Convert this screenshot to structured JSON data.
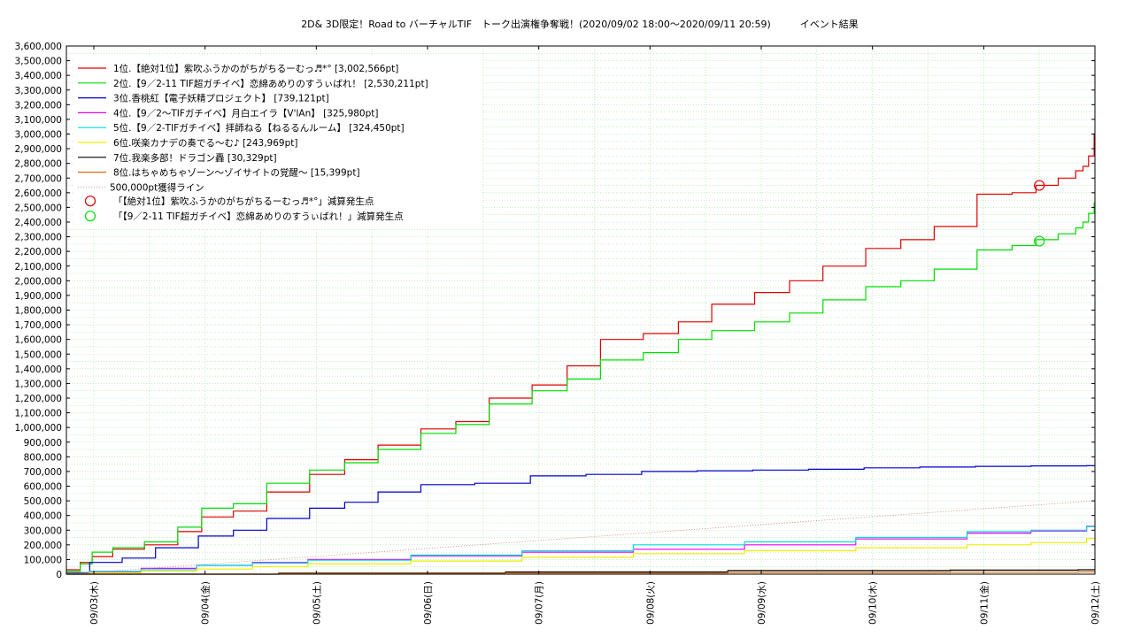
{
  "chart_data": {
    "type": "line",
    "title": "2D& 3D限定！Road to バーチャルTIF　トーク出演権争奪戦！(2020/09/02 18:00〜2020/09/11 20:59)　　　イベント結果",
    "xlabel": "",
    "ylabel": "",
    "ylim": [
      0,
      3600000
    ],
    "xlim": [
      0,
      9
    ],
    "x_tick_labels": [
      "09/03(木)",
      "09/04(金)",
      "09/05(土)",
      "09/06(日)",
      "09/07(月)",
      "09/08(火)",
      "09/09(水)",
      "09/10(木)",
      "09/11(金)",
      "09/12(土)"
    ],
    "y_tick_labels": [
      "0",
      "100,000",
      "200,000",
      "300,000",
      "400,000",
      "500,000",
      "600,000",
      "700,000",
      "800,000",
      "900,000",
      "1,000,000",
      "1,100,000",
      "1,200,000",
      "1,300,000",
      "1,400,000",
      "1,500,000",
      "1,600,000",
      "1,700,000",
      "1,800,000",
      "1,900,000",
      "2,000,000",
      "2,100,000",
      "2,200,000",
      "2,300,000",
      "2,400,000",
      "2,500,000",
      "2,600,000",
      "2,700,000",
      "2,800,000",
      "2,900,000",
      "3,000,000",
      "3,100,000",
      "3,200,000",
      "3,300,000",
      "3,400,000",
      "3,500,000",
      "3,600,000"
    ],
    "grid": true,
    "legend_position": "top-left",
    "series": [
      {
        "name": "1位.【絶対1位】紫吹ふうかのがちがちるーむっ♬*° [3,002,566pt]",
        "color": "#e00000",
        "x": [
          -0.25,
          -0.1,
          0,
          0.2,
          0.5,
          0.8,
          1.0,
          1.3,
          1.6,
          2.0,
          2.3,
          2.6,
          3.0,
          3.3,
          3.6,
          4.0,
          4.3,
          4.6,
          5.0,
          5.3,
          5.6,
          6.0,
          6.3,
          6.6,
          7.0,
          7.3,
          7.6,
          8.0,
          8.3,
          8.5,
          8.7,
          8.85,
          8.9,
          8.95,
          9.0
        ],
        "y": [
          30000,
          80000,
          120000,
          170000,
          200000,
          290000,
          390000,
          430000,
          560000,
          680000,
          780000,
          880000,
          990000,
          1040000,
          1200000,
          1290000,
          1420000,
          1600000,
          1640000,
          1720000,
          1840000,
          1920000,
          2000000,
          2100000,
          2220000,
          2280000,
          2370000,
          2590000,
          2600000,
          2650000,
          2700000,
          2750000,
          2780000,
          2850000,
          3000000
        ]
      },
      {
        "name": "2位.【9／2-11 TIF超ガチイベ】恋綿あめりのすうぃばれ！ [2,530,211pt]",
        "color": "#00dd00",
        "x": [
          -0.25,
          -0.1,
          0,
          0.2,
          0.5,
          0.8,
          1.0,
          1.3,
          1.6,
          2.0,
          2.3,
          2.6,
          3.0,
          3.3,
          3.6,
          4.0,
          4.3,
          4.6,
          5.0,
          5.3,
          5.6,
          6.0,
          6.3,
          6.6,
          7.0,
          7.3,
          7.6,
          8.0,
          8.3,
          8.5,
          8.7,
          8.85,
          8.9,
          8.95,
          9.0
        ],
        "y": [
          20000,
          70000,
          150000,
          180000,
          220000,
          320000,
          450000,
          480000,
          620000,
          710000,
          760000,
          850000,
          960000,
          1020000,
          1160000,
          1250000,
          1330000,
          1460000,
          1510000,
          1600000,
          1660000,
          1720000,
          1780000,
          1870000,
          1960000,
          2000000,
          2080000,
          2210000,
          2240000,
          2280000,
          2320000,
          2360000,
          2400000,
          2460000,
          2530000
        ]
      },
      {
        "name": "3位.香桃紅【電子妖精プロジェクト】 [739,121pt]",
        "color": "#0000cc",
        "x": [
          -0.25,
          0,
          0.3,
          0.6,
          1.0,
          1.3,
          1.6,
          2.0,
          2.3,
          2.6,
          3.0,
          3.5,
          4.0,
          4.5,
          5.0,
          5.5,
          6.0,
          6.5,
          7.0,
          7.5,
          8.0,
          8.5,
          9.0
        ],
        "y": [
          10000,
          80000,
          110000,
          180000,
          260000,
          300000,
          380000,
          450000,
          490000,
          560000,
          610000,
          620000,
          670000,
          680000,
          700000,
          705000,
          710000,
          715000,
          725000,
          730000,
          735000,
          738000,
          739000
        ]
      },
      {
        "name": "4位.【9／2〜TIFガチイベ】月白エイラ【V'lAn】 [325,980pt]",
        "color": "#ee00ee",
        "x": [
          -0.25,
          0,
          0.5,
          1.0,
          1.5,
          2.0,
          3.0,
          4.0,
          5.0,
          6.0,
          7.0,
          8.0,
          8.5,
          9.0
        ],
        "y": [
          5000,
          15000,
          40000,
          60000,
          80000,
          100000,
          125000,
          150000,
          170000,
          200000,
          240000,
          280000,
          295000,
          326000
        ]
      },
      {
        "name": "5位.【9／2-TIFガチイベ】拝師ねる【ねるるんルーム】 [324,450pt]",
        "color": "#00dddd",
        "x": [
          -0.25,
          0,
          0.5,
          1.0,
          1.5,
          2.0,
          3.0,
          4.0,
          5.0,
          6.0,
          7.0,
          8.0,
          8.5,
          9.0
        ],
        "y": [
          5000,
          20000,
          30000,
          60000,
          75000,
          95000,
          130000,
          160000,
          200000,
          220000,
          250000,
          290000,
          300000,
          324000
        ]
      },
      {
        "name": "6位.咲楽カナデの奏でる〜む♪ [243,969pt]",
        "color": "#eeee00",
        "x": [
          -0.25,
          0,
          0.5,
          1.0,
          1.5,
          2.0,
          3.0,
          4.0,
          5.0,
          6.0,
          7.0,
          8.0,
          8.5,
          9.0
        ],
        "y": [
          3000,
          10000,
          20000,
          35000,
          50000,
          70000,
          90000,
          115000,
          140000,
          160000,
          180000,
          200000,
          215000,
          244000
        ]
      },
      {
        "name": "7位.我楽多部！ドラゴン轟 [30,329pt]",
        "color": "#000000",
        "x": [
          -0.25,
          2.0,
          4.0,
          6.0,
          8.0,
          9.0
        ],
        "y": [
          0,
          8000,
          15000,
          25000,
          28000,
          30000
        ]
      },
      {
        "name": "8位.はちゃめちゃゾーン〜ゾイサイトの覚醒〜 [15,399pt]",
        "color": "#dd6600",
        "x": [
          -0.25,
          2.0,
          4.0,
          6.0,
          8.0,
          9.0
        ],
        "y": [
          0,
          5000,
          8000,
          12000,
          14000,
          15400
        ]
      },
      {
        "name": "500,000pt獲得ライン",
        "color": "#cc7777",
        "dotted": true,
        "x": [
          -0.25,
          9.0
        ],
        "y": [
          0,
          500000
        ]
      }
    ],
    "markers": [
      {
        "name": "「【絶対1位】紫吹ふうかのがちがちるーむっ♬*°」減算発生点",
        "color": "#e00000",
        "x": 8.5,
        "y": 2650000
      },
      {
        "name": "「【9／2-11 TIF超ガチイベ】恋綿あめりのすうぃばれ！」減算発生点",
        "color": "#00dd00",
        "x": 8.5,
        "y": 2270000
      }
    ]
  }
}
